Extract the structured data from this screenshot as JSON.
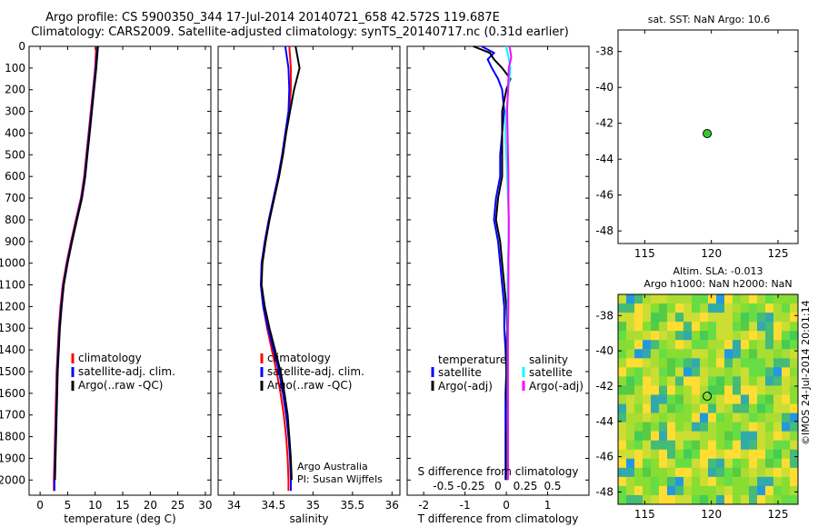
{
  "header": {
    "line1": "Argo profile: CS 5900350_344 17-Jul-2014 20140721_658 42.572S 119.687E",
    "line2": "Climatology: CARS2009. Satellite-adjusted climatology: synTS_20140717.nc (0.31d earlier)"
  },
  "side_label": "©IMOS 24-Jul-2014 20:01:14",
  "colors": {
    "climatology": "#ff0000",
    "satellite": "#0000ff",
    "argo": "#000000",
    "sat_sal": "#00ffff",
    "argo_sal": "#ff00ff"
  },
  "chart_data": [
    {
      "type": "line",
      "xlabel": "temperature (deg C)",
      "ylabel": "",
      "xlim": [
        -2,
        31
      ],
      "ylim": [
        2070,
        0
      ],
      "xticks": [
        0,
        5,
        10,
        15,
        20,
        25,
        30
      ],
      "yticks": [
        0,
        100,
        200,
        300,
        400,
        500,
        600,
        700,
        800,
        900,
        1000,
        1100,
        1200,
        1300,
        1400,
        1500,
        1600,
        1700,
        1800,
        1900,
        2000
      ],
      "legend": {
        "position": "lower-middle",
        "entries": [
          "climatology",
          "satellite-adj. clim.",
          "Argo(..raw -QC)"
        ]
      },
      "series": [
        {
          "name": "climatology",
          "color": "#ff0000",
          "depth": [
            0,
            100,
            200,
            300,
            400,
            500,
            600,
            700,
            800,
            900,
            1000,
            1100,
            1200,
            1300,
            1400,
            1500,
            1600,
            1700,
            1800,
            1900,
            2000,
            2050
          ],
          "values": [
            10.2,
            10.0,
            9.6,
            9.2,
            8.8,
            8.4,
            8.0,
            7.4,
            6.5,
            5.6,
            4.8,
            4.1,
            3.7,
            3.4,
            3.2,
            3.0,
            2.9,
            2.8,
            2.7,
            2.6,
            2.5,
            2.5
          ]
        },
        {
          "name": "satellite-adj. clim.",
          "color": "#0000ff",
          "depth": [
            0,
            100,
            200,
            300,
            400,
            500,
            600,
            700,
            800,
            900,
            1000,
            1100,
            1200,
            1300,
            1400,
            1500,
            1600,
            1700,
            1800,
            1900,
            2000,
            2050
          ],
          "values": [
            10.4,
            10.1,
            9.7,
            9.3,
            8.9,
            8.5,
            8.1,
            7.5,
            6.6,
            5.7,
            4.9,
            4.2,
            3.8,
            3.5,
            3.3,
            3.1,
            3.0,
            2.9,
            2.8,
            2.7,
            2.6,
            2.6
          ]
        },
        {
          "name": "Argo(..raw -QC)",
          "color": "#000000",
          "depth": [
            0,
            100,
            200,
            300,
            400,
            500,
            600,
            700,
            800,
            900,
            1000,
            1100,
            1200,
            1300,
            1400,
            1500,
            1600,
            1700,
            1800,
            1900,
            2000
          ],
          "values": [
            10.5,
            10.2,
            9.8,
            9.4,
            9.0,
            8.6,
            8.2,
            7.6,
            6.7,
            5.8,
            5.0,
            4.3,
            3.9,
            3.6,
            3.4,
            3.2,
            3.1,
            3.0,
            2.9,
            2.8,
            2.7
          ]
        }
      ]
    },
    {
      "type": "line",
      "xlabel": "salinity",
      "xlim": [
        33.8,
        36.1
      ],
      "ylim": [
        2070,
        0
      ],
      "xticks": [
        34,
        34.5,
        35,
        35.5,
        36
      ],
      "legend": {
        "position": "lower-middle",
        "entries": [
          "climatology",
          "satellite-adj. clim.",
          "Argo(..raw -QC)"
        ]
      },
      "annotation": [
        "Argo Australia",
        "PI: Susan Wijffels"
      ],
      "series": [
        {
          "name": "climatology",
          "color": "#ff0000",
          "depth": [
            0,
            100,
            200,
            300,
            400,
            500,
            600,
            700,
            800,
            900,
            1000,
            1100,
            1200,
            1300,
            1400,
            1500,
            1600,
            1700,
            1800,
            1900,
            2000,
            2050
          ],
          "values": [
            34.7,
            34.72,
            34.72,
            34.7,
            34.66,
            34.62,
            34.57,
            34.51,
            34.45,
            34.4,
            34.36,
            34.34,
            34.37,
            34.42,
            34.48,
            34.54,
            34.59,
            34.63,
            34.66,
            34.68,
            34.69,
            34.69
          ]
        },
        {
          "name": "satellite-adj. clim.",
          "color": "#0000ff",
          "depth": [
            0,
            100,
            200,
            300,
            400,
            500,
            600,
            700,
            800,
            900,
            1000,
            1100,
            1200,
            1300,
            1400,
            1500,
            1600,
            1700,
            1800,
            1900,
            2000,
            2050
          ],
          "values": [
            34.65,
            34.69,
            34.7,
            34.69,
            34.65,
            34.61,
            34.56,
            34.5,
            34.44,
            34.39,
            34.35,
            34.34,
            34.37,
            34.43,
            34.5,
            34.57,
            34.62,
            34.66,
            34.69,
            34.71,
            34.72,
            34.72
          ]
        },
        {
          "name": "Argo(..raw -QC)",
          "color": "#000000",
          "depth": [
            0,
            100,
            200,
            300,
            400,
            500,
            600,
            700,
            800,
            900,
            1000,
            1100,
            1200,
            1300,
            1400,
            1500,
            1600,
            1700,
            1800,
            1900,
            2000
          ],
          "values": [
            34.78,
            34.83,
            34.76,
            34.71,
            34.66,
            34.62,
            34.57,
            34.51,
            34.45,
            34.4,
            34.36,
            34.35,
            34.39,
            34.45,
            34.52,
            34.59,
            34.64,
            34.68,
            34.7,
            34.72,
            34.73
          ]
        }
      ]
    },
    {
      "type": "line",
      "xlabel": "T difference from climatology",
      "xlabel_top": "S difference from climatology",
      "xlim": [
        -2.4,
        2.0
      ],
      "ylim": [
        2070,
        0
      ],
      "xticks": [
        -2,
        -1,
        0,
        1
      ],
      "xticks_s": [
        -0.5,
        -0.25,
        0,
        0.25,
        0.5
      ],
      "legend": {
        "position": "lower-middle",
        "groups": [
          {
            "title": "temperature",
            "entries": [
              "satellite",
              "Argo(-adj)"
            ]
          },
          {
            "title": "salinity",
            "entries": [
              "satellite",
              "Argo(-adj)"
            ]
          }
        ]
      },
      "series": [
        {
          "name": "satellite",
          "color": "#0000ff",
          "depth": [
            0,
            30,
            60,
            100,
            150,
            200,
            300,
            400,
            500,
            600,
            700,
            800,
            900,
            1000,
            1100,
            1200,
            1300,
            1400,
            1500,
            1600,
            1700,
            1800,
            1900,
            2000
          ],
          "values": [
            -0.6,
            -0.3,
            -0.45,
            -0.35,
            -0.2,
            -0.1,
            -0.05,
            -0.1,
            -0.15,
            -0.15,
            -0.25,
            -0.3,
            -0.2,
            -0.15,
            -0.1,
            -0.05,
            -0.05,
            -0.02,
            0.0,
            -0.02,
            -0.02,
            -0.02,
            -0.02,
            -0.02
          ]
        },
        {
          "name": "Argo(-adj)",
          "color": "#000000",
          "depth": [
            0,
            30,
            60,
            100,
            150,
            200,
            300,
            400,
            500,
            600,
            700,
            800,
            900,
            1000,
            1100,
            1200,
            1300,
            1400,
            1500,
            1600,
            1700,
            1800,
            1900,
            2000
          ],
          "values": [
            -0.8,
            -0.4,
            -0.3,
            -0.1,
            0.1,
            0.0,
            -0.1,
            -0.1,
            -0.1,
            -0.1,
            -0.2,
            -0.25,
            -0.15,
            -0.1,
            -0.05,
            0.0,
            0.02,
            0.0,
            0.0,
            0.0,
            0.02,
            0.0,
            0.0,
            0.0
          ]
        },
        {
          "name": "satellite",
          "color": "#00ffff",
          "depth": [
            0,
            50,
            100,
            200,
            300,
            400,
            500,
            600,
            700,
            800,
            900,
            1000,
            1100,
            1200,
            1300,
            1400,
            1500,
            1600,
            1700,
            1800,
            1900,
            2000
          ],
          "values": [
            0.0,
            0.05,
            0.1,
            0.05,
            0.0,
            -0.02,
            0.0,
            0.02,
            0.04,
            0.06,
            0.05,
            0.04,
            0.03,
            0.03,
            0.03,
            0.03,
            0.03,
            0.03,
            0.03,
            0.03,
            0.03,
            0.03
          ]
        },
        {
          "name": "Argo(-adj)",
          "color": "#ff00ff",
          "depth": [
            0,
            50,
            100,
            200,
            300,
            400,
            500,
            600,
            700,
            800,
            900,
            1000,
            1100,
            1200,
            1300,
            1400,
            1500,
            1600,
            1700,
            1800,
            1900,
            2000
          ],
          "values": [
            0.08,
            0.12,
            0.06,
            0.04,
            0.02,
            0.03,
            0.04,
            0.05,
            0.05,
            0.06,
            0.06,
            0.05,
            0.05,
            0.05,
            0.04,
            0.04,
            0.04,
            0.04,
            0.04,
            0.04,
            0.04,
            0.04
          ]
        }
      ]
    },
    {
      "type": "scatter",
      "title": "sat. SST: NaN Argo: 10.6",
      "xlim": [
        113,
        126.5
      ],
      "ylim": [
        -48.7,
        -36.8
      ],
      "xticks": [
        115,
        120,
        125
      ],
      "yticks": [
        -38,
        -40,
        -42,
        -44,
        -46,
        -48
      ],
      "points": [
        {
          "x": 119.687,
          "y": -42.572,
          "color": "#33cc33"
        }
      ]
    },
    {
      "type": "heatmap",
      "title": "Altim. SLA: -0.013",
      "subtitle": "Argo h1000: NaN h2000: NaN",
      "xlim": [
        113,
        126.5
      ],
      "ylim": [
        -48.7,
        -36.8
      ],
      "xticks": [
        115,
        120,
        125
      ],
      "yticks": [
        -38,
        -40,
        -42,
        -44,
        -46,
        -48
      ],
      "points": [
        {
          "x": 119.687,
          "y": -42.572
        }
      ]
    }
  ]
}
